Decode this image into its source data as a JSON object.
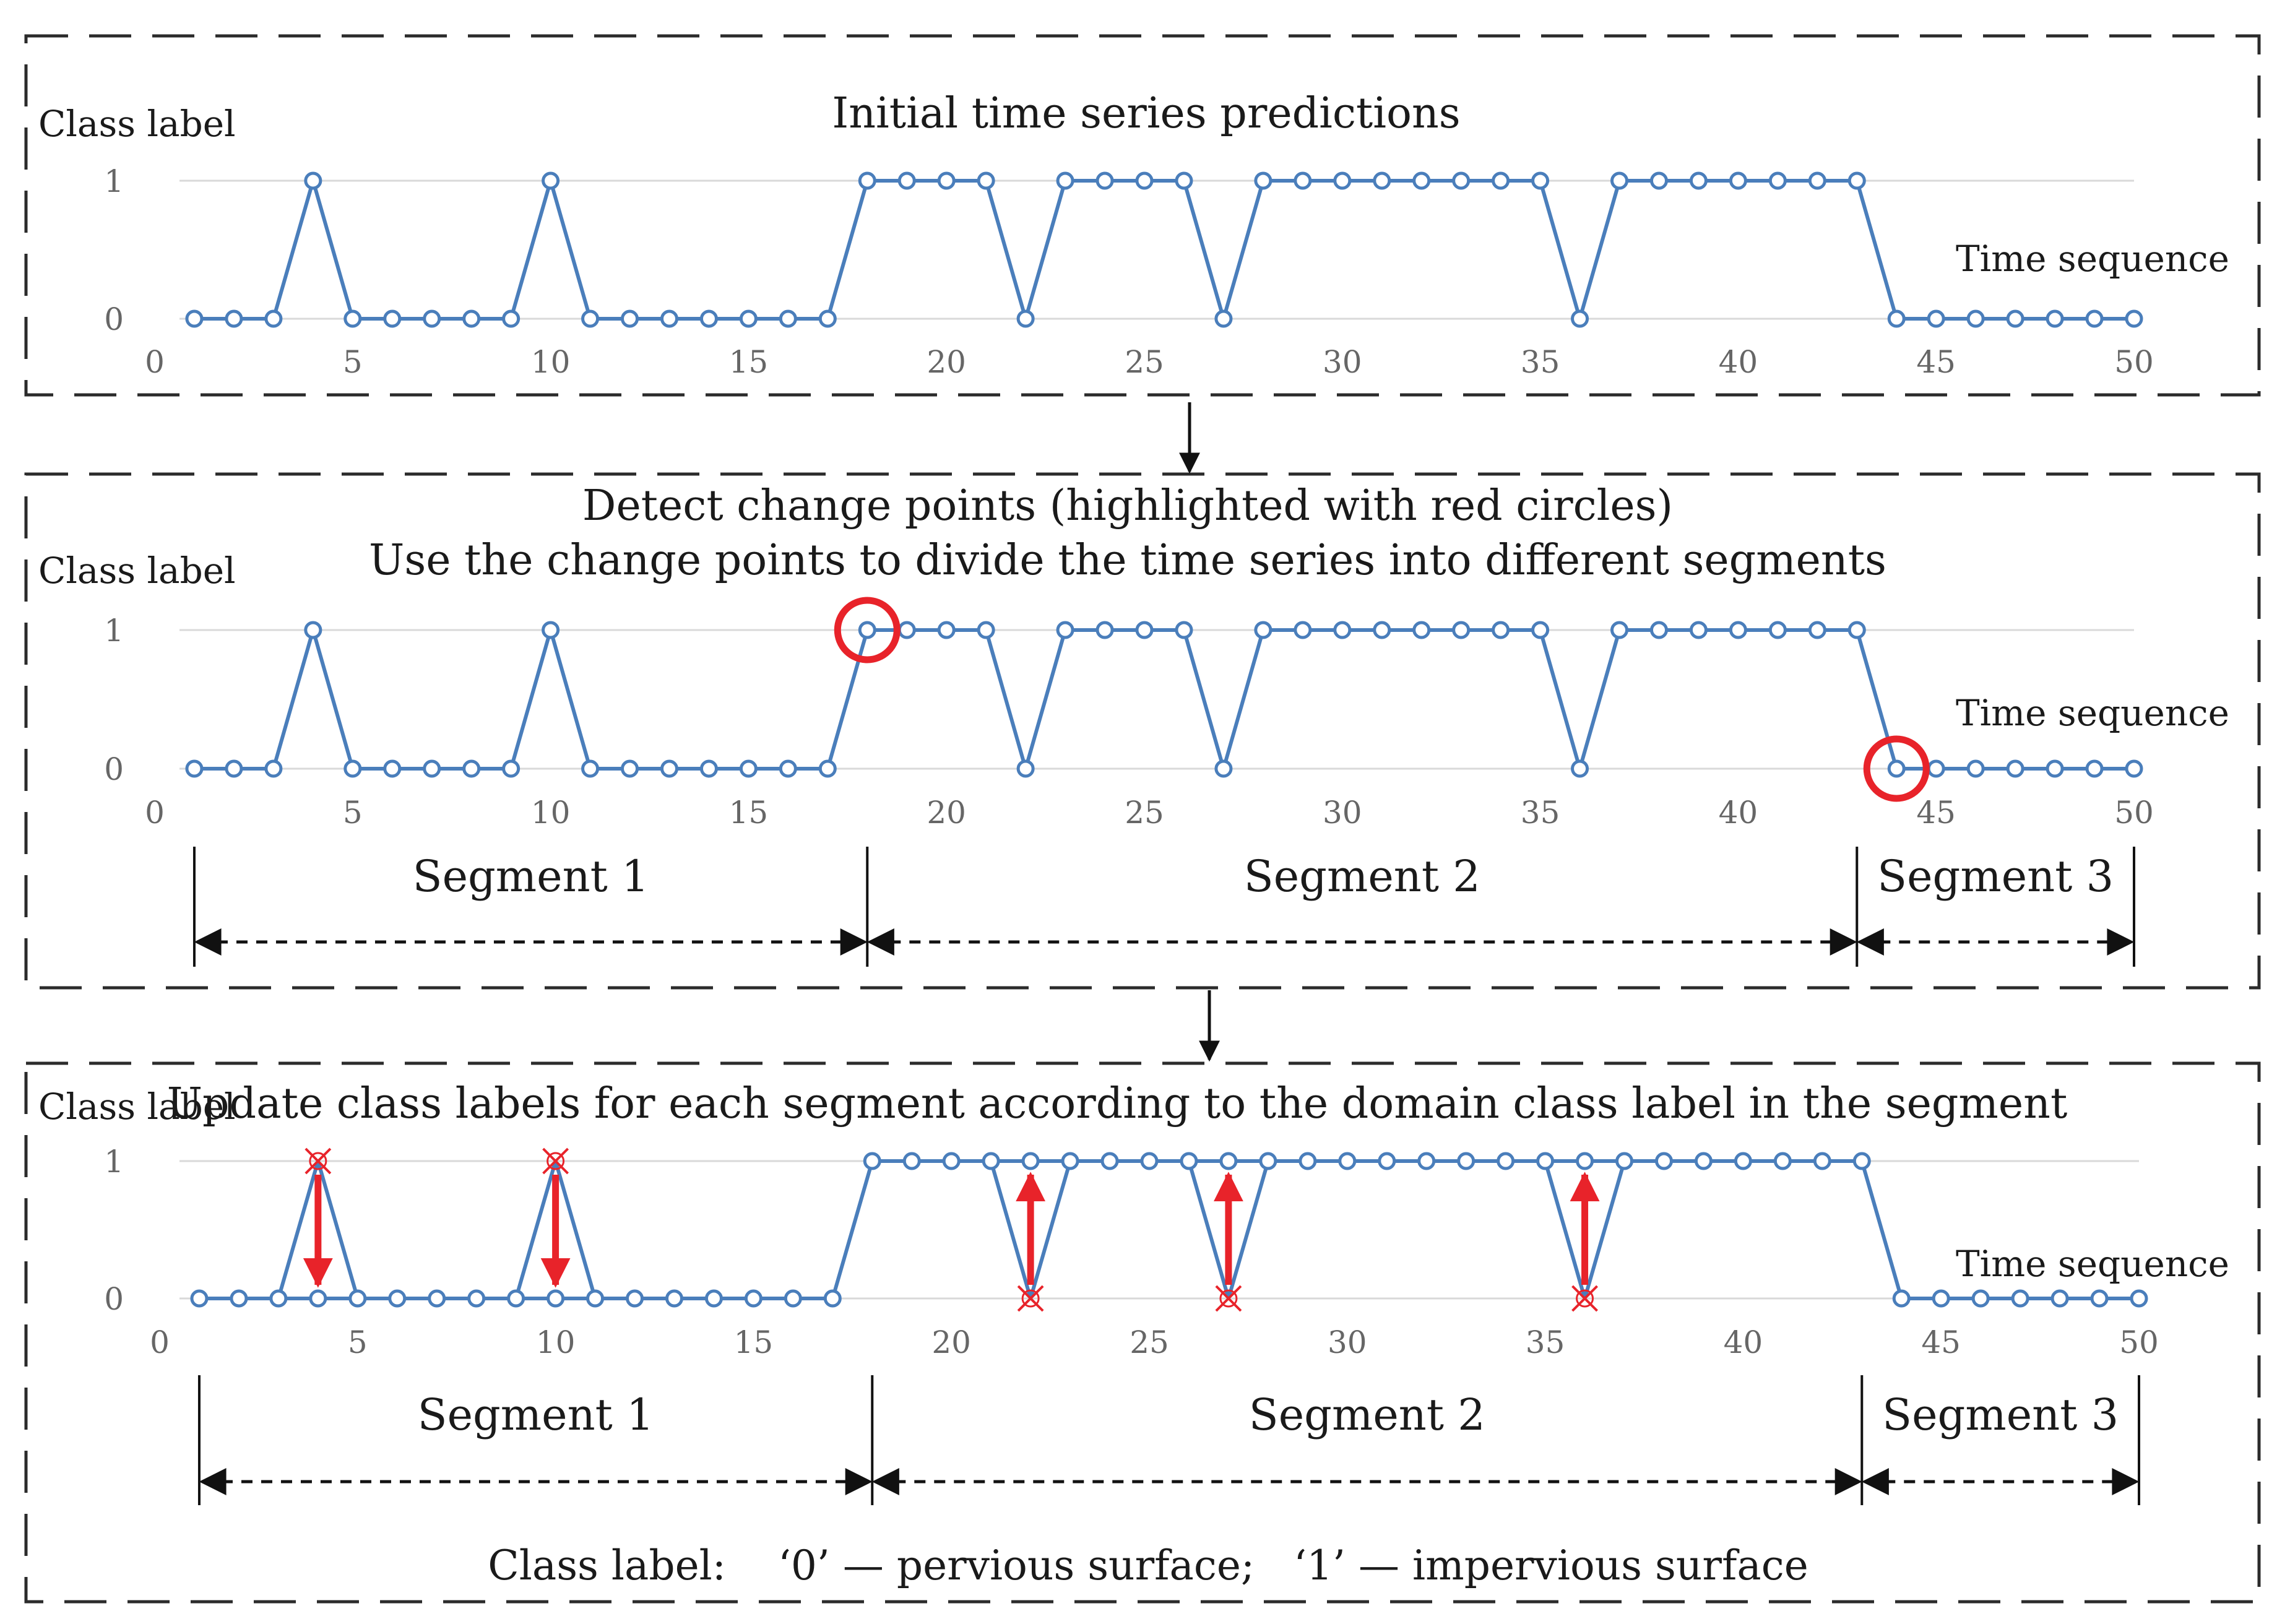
{
  "panels": [
    {
      "id": "initial",
      "titles": [
        "Initial time series predictions"
      ],
      "ylabel": "Class label",
      "xlabel": "Time sequence",
      "show_segments": false
    },
    {
      "id": "change-points",
      "titles": [
        "Detect change points (highlighted with red circles)",
        "Use the change points to divide the time series into different segments"
      ],
      "ylabel": "Class label",
      "xlabel": "Time sequence",
      "show_segments": true
    },
    {
      "id": "updated",
      "titles": [
        "Update class labels for each segment according to the domain class label in the segment"
      ],
      "ylabel": "Class label",
      "xlabel": "Time sequence",
      "show_segments": true
    }
  ],
  "segments": [
    "Segment 1",
    "Segment 2",
    "Segment 3"
  ],
  "legend_text": "Class label:    ‘0’ — pervious surface;   ‘1’ — impervious surface",
  "colors": {
    "series": "#4a7ebb",
    "highlight": "#e8232a",
    "gridline": "#d9d9d9",
    "frame": "#2b2b2b"
  },
  "chart_data": [
    {
      "type": "line",
      "title": "Initial time series predictions",
      "xlabel": "Time sequence",
      "ylabel": "Class label",
      "xlim": [
        0,
        50
      ],
      "ylim": [
        0,
        1
      ],
      "x_ticks": [
        0,
        5,
        10,
        15,
        20,
        25,
        30,
        35,
        40,
        45,
        50
      ],
      "y_ticks": [
        0,
        1
      ],
      "x": [
        1,
        2,
        3,
        4,
        5,
        6,
        7,
        8,
        9,
        10,
        11,
        12,
        13,
        14,
        15,
        16,
        17,
        18,
        19,
        20,
        21,
        22,
        23,
        24,
        25,
        26,
        27,
        28,
        29,
        30,
        31,
        32,
        33,
        34,
        35,
        36,
        37,
        38,
        39,
        40,
        41,
        42,
        43,
        44,
        45,
        46,
        47,
        48,
        49,
        50
      ],
      "values": [
        0,
        0,
        0,
        1,
        0,
        0,
        0,
        0,
        0,
        1,
        0,
        0,
        0,
        0,
        0,
        0,
        0,
        1,
        1,
        1,
        1,
        0,
        1,
        1,
        1,
        1,
        0,
        1,
        1,
        1,
        1,
        1,
        1,
        1,
        1,
        0,
        1,
        1,
        1,
        1,
        1,
        1,
        1,
        0,
        0,
        0,
        0,
        0,
        0,
        0
      ]
    },
    {
      "type": "line",
      "title": "Detect change points (highlighted with red circles)",
      "xlabel": "Time sequence",
      "ylabel": "Class label",
      "xlim": [
        0,
        50
      ],
      "ylim": [
        0,
        1
      ],
      "x_ticks": [
        0,
        5,
        10,
        15,
        20,
        25,
        30,
        35,
        40,
        45,
        50
      ],
      "y_ticks": [
        0,
        1
      ],
      "x": [
        1,
        2,
        3,
        4,
        5,
        6,
        7,
        8,
        9,
        10,
        11,
        12,
        13,
        14,
        15,
        16,
        17,
        18,
        19,
        20,
        21,
        22,
        23,
        24,
        25,
        26,
        27,
        28,
        29,
        30,
        31,
        32,
        33,
        34,
        35,
        36,
        37,
        38,
        39,
        40,
        41,
        42,
        43,
        44,
        45,
        46,
        47,
        48,
        49,
        50
      ],
      "values": [
        0,
        0,
        0,
        1,
        0,
        0,
        0,
        0,
        0,
        1,
        0,
        0,
        0,
        0,
        0,
        0,
        0,
        1,
        1,
        1,
        1,
        0,
        1,
        1,
        1,
        1,
        0,
        1,
        1,
        1,
        1,
        1,
        1,
        1,
        1,
        0,
        1,
        1,
        1,
        1,
        1,
        1,
        1,
        0,
        0,
        0,
        0,
        0,
        0,
        0
      ],
      "change_points": [
        18,
        44
      ],
      "segment_boundaries": [
        1,
        18,
        43,
        50
      ]
    },
    {
      "type": "line",
      "title": "Update class labels for each segment according to the domain class label in the segment",
      "xlabel": "Time sequence",
      "ylabel": "Class label",
      "xlim": [
        0,
        50
      ],
      "ylim": [
        0,
        1
      ],
      "x_ticks": [
        0,
        5,
        10,
        15,
        20,
        25,
        30,
        35,
        40,
        45,
        50
      ],
      "y_ticks": [
        0,
        1
      ],
      "x": [
        1,
        2,
        3,
        4,
        5,
        6,
        7,
        8,
        9,
        10,
        11,
        12,
        13,
        14,
        15,
        16,
        17,
        18,
        19,
        20,
        21,
        22,
        23,
        24,
        25,
        26,
        27,
        28,
        29,
        30,
        31,
        32,
        33,
        34,
        35,
        36,
        37,
        38,
        39,
        40,
        41,
        42,
        43,
        44,
        45,
        46,
        47,
        48,
        49,
        50
      ],
      "values": [
        0,
        0,
        0,
        0,
        0,
        0,
        0,
        0,
        0,
        0,
        0,
        0,
        0,
        0,
        0,
        0,
        0,
        1,
        1,
        1,
        1,
        1,
        1,
        1,
        1,
        1,
        1,
        1,
        1,
        1,
        1,
        1,
        1,
        1,
        1,
        1,
        1,
        1,
        1,
        1,
        1,
        1,
        1,
        0,
        0,
        0,
        0,
        0,
        0,
        0
      ],
      "original_values": [
        0,
        0,
        0,
        1,
        0,
        0,
        0,
        0,
        0,
        1,
        0,
        0,
        0,
        0,
        0,
        0,
        0,
        1,
        1,
        1,
        1,
        0,
        1,
        1,
        1,
        1,
        0,
        1,
        1,
        1,
        1,
        1,
        1,
        1,
        1,
        0,
        1,
        1,
        1,
        1,
        1,
        1,
        1,
        0,
        0,
        0,
        0,
        0,
        0,
        0
      ],
      "updated_points": [
        {
          "x": 4,
          "from": 1,
          "to": 0
        },
        {
          "x": 10,
          "from": 1,
          "to": 0
        },
        {
          "x": 22,
          "from": 0,
          "to": 1
        },
        {
          "x": 27,
          "from": 0,
          "to": 1
        },
        {
          "x": 36,
          "from": 0,
          "to": 1
        }
      ],
      "segment_boundaries": [
        1,
        18,
        43,
        50
      ]
    }
  ]
}
